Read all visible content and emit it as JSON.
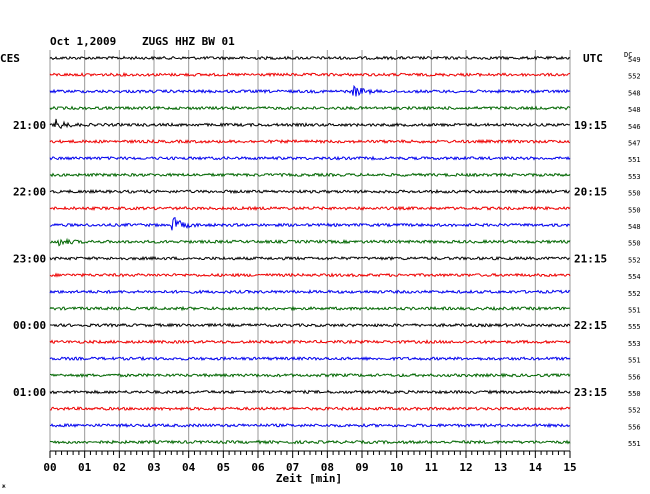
{
  "header": {
    "date": "Oct 1,2009",
    "station": "ZUGS HHZ BW 01",
    "left_tz": "CES",
    "right_tz": "UTC",
    "dc_label": "DC"
  },
  "footer": {
    "xlabel": "Zeit [min]",
    "corner_mark": "ж"
  },
  "colors": {
    "black": "#000000",
    "red": "#ee0000",
    "blue": "#0000ee",
    "green": "#006600",
    "grid": "#9a9a9a"
  },
  "chart_data": {
    "type": "line",
    "title": "Oct 1,2009   ZUGS HHZ BW 01",
    "xlabel": "Zeit [min]",
    "xlim": [
      0,
      15
    ],
    "x_ticks": [
      "00",
      "01",
      "02",
      "03",
      "04",
      "05",
      "06",
      "07",
      "08",
      "09",
      "10",
      "11",
      "12",
      "13",
      "14",
      "15"
    ],
    "grid": true,
    "rows_per_hour": 4,
    "row_colors": [
      "#000000",
      "#ee0000",
      "#0000ee",
      "#006600"
    ],
    "left_hour_labels": [
      {
        "row": 4,
        "label": "21:00"
      },
      {
        "row": 8,
        "label": "22:00"
      },
      {
        "row": 12,
        "label": "23:00"
      },
      {
        "row": 16,
        "label": "00:00"
      },
      {
        "row": 20,
        "label": "01:00"
      }
    ],
    "right_hour_labels": [
      {
        "row": 4,
        "label": "19:15"
      },
      {
        "row": 8,
        "label": "20:15"
      },
      {
        "row": 12,
        "label": "21:15"
      },
      {
        "row": 16,
        "label": "22:15"
      },
      {
        "row": 20,
        "label": "23:15"
      }
    ],
    "dc_offsets": [
      549,
      552,
      548,
      548,
      546,
      547,
      551,
      553,
      550,
      550,
      548,
      550,
      552,
      554,
      552,
      551,
      555,
      553,
      551,
      556,
      550,
      552,
      556,
      551
    ],
    "events": [
      {
        "row": 2,
        "minute": 8.8,
        "amplitude": 2.2
      },
      {
        "row": 4,
        "minute": 0.2,
        "amplitude": 2.0
      },
      {
        "row": 10,
        "minute": 3.6,
        "amplitude": 2.8
      },
      {
        "row": 11,
        "minute": 0.3,
        "amplitude": 1.4
      }
    ]
  }
}
